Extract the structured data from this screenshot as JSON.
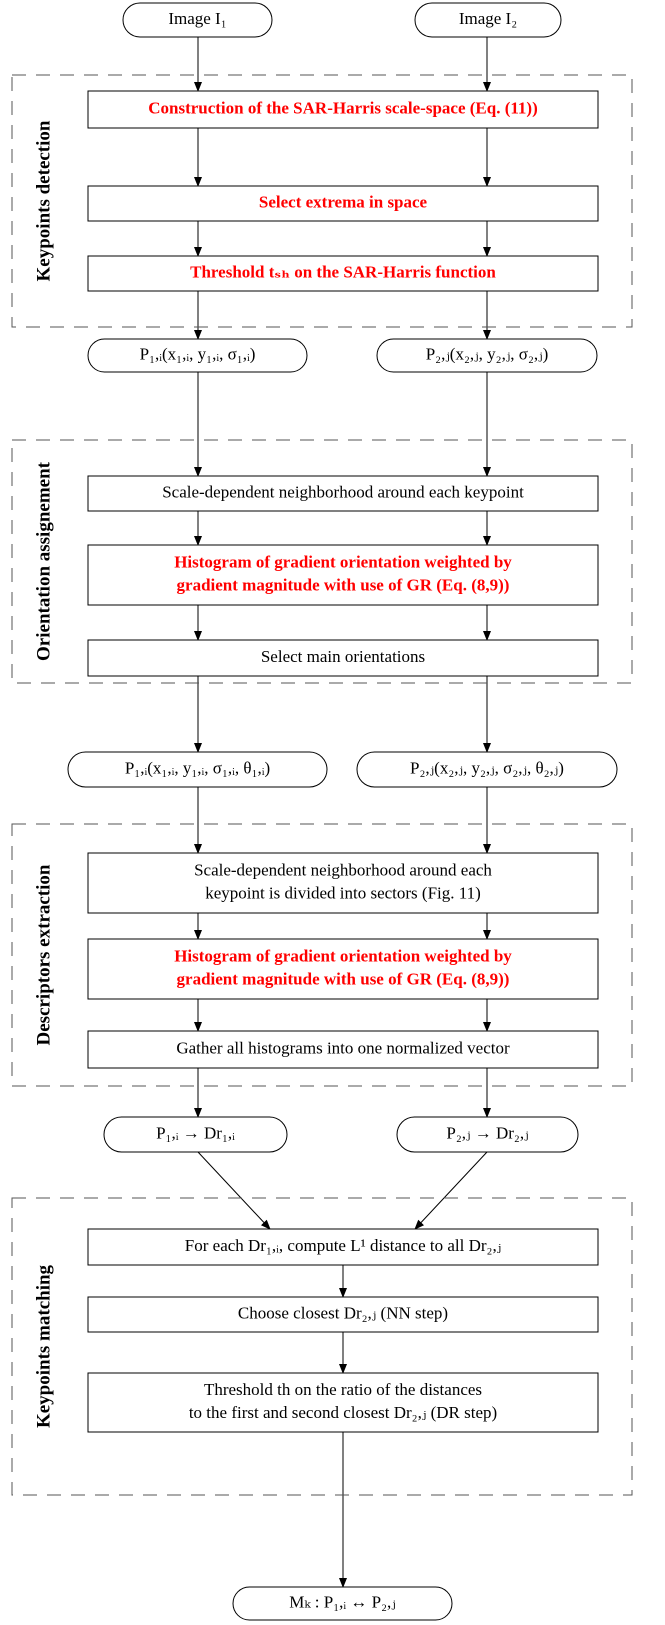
{
  "groups": [
    {
      "label": "Keypoints detection"
    },
    {
      "label": "Orientation assignement"
    },
    {
      "label": "Descriptors extraction"
    },
    {
      "label": "Keypoints matching"
    }
  ],
  "nodes": [
    {
      "lines": [
        "Image I₁"
      ]
    },
    {
      "lines": [
        "Image I₂"
      ]
    },
    {
      "lines": [
        "Construction of the SAR-Harris scale-space (Eq. (11))"
      ],
      "color": "#ff0000"
    },
    {
      "lines": [
        "Select extrema in space"
      ],
      "color": "#ff0000"
    },
    {
      "lines": [
        "Threshold tₛₕ on the SAR-Harris function"
      ],
      "color": "#ff0000"
    },
    {
      "lines": [
        "P₁,ᵢ(x₁,ᵢ, y₁,ᵢ, σ₁,ᵢ)"
      ]
    },
    {
      "lines": [
        "P₂,ⱼ(x₂,ⱼ, y₂,ⱼ, σ₂,ⱼ)"
      ]
    },
    {
      "lines": [
        "Scale-dependent neighborhood around each keypoint"
      ]
    },
    {
      "lines": [
        "Histogram of gradient orientation weighted by",
        "gradient magnitude with use of GR (Eq. (8,9))"
      ],
      "color": "#ff0000"
    },
    {
      "lines": [
        "Select main orientations"
      ]
    },
    {
      "lines": [
        "P₁,ᵢ(x₁,ᵢ, y₁,ᵢ, σ₁,ᵢ, θ₁,ᵢ)"
      ]
    },
    {
      "lines": [
        "P₂,ⱼ(x₂,ⱼ, y₂,ⱼ, σ₂,ⱼ, θ₂,ⱼ)"
      ]
    },
    {
      "lines": [
        "Scale-dependent neighborhood around each",
        "keypoint is divided into sectors (Fig. 11)"
      ]
    },
    {
      "lines": [
        "Histogram of gradient orientation weighted by",
        "gradient magnitude with use of GR (Eq. (8,9))"
      ],
      "color": "#ff0000"
    },
    {
      "lines": [
        "Gather all histograms into one normalized vector"
      ]
    },
    {
      "lines": [
        "P₁,ᵢ → Dr₁,ᵢ"
      ]
    },
    {
      "lines": [
        "P₂,ⱼ → Dr₂,ⱼ"
      ]
    },
    {
      "lines": [
        "For each Dr₁,ᵢ, compute L¹ distance to all Dr₂,ⱼ"
      ]
    },
    {
      "lines": [
        "Choose closest Dr₂,ⱼ (NN step)"
      ]
    },
    {
      "lines": [
        "Threshold th on the ratio of the distances",
        "to the first and second closest Dr₂,ⱼ (DR step)"
      ]
    },
    {
      "lines": [
        "Mₖ : P₁,ᵢ ↔ P₂,ⱼ"
      ]
    }
  ]
}
